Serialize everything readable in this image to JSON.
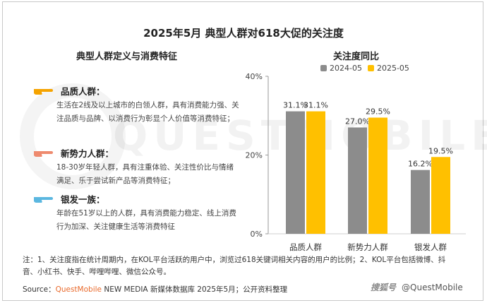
{
  "title": "2025年5月 典型人群对618大促的关注度",
  "left_section": {
    "title": "典型人群定义与消费特征",
    "groups": [
      {
        "name": "品质人群：",
        "desc": "生活在2线及以上城市的白领人群，具有消费能力强、关注品质与品牌、以消费行为彰显个人价值等消费特征；",
        "hand_color": "#f5a300"
      },
      {
        "name": "新势力人群：",
        "desc": "18-30岁年轻人群，具有注重体验、关注性价比与情绪满足、乐于尝试新产品等消费特征；",
        "hand_color": "#ee8a6e"
      },
      {
        "name": "银发一族：",
        "desc": "年龄在51岁以上的人群，具有消费能力稳定、线上消费行为加深、关注健康生活等消费特征",
        "hand_color": "#5bb7e0"
      }
    ]
  },
  "right_section": {
    "title": "关注度同比"
  },
  "chart_data": {
    "type": "bar",
    "categories": [
      "品质人群",
      "新势力人群",
      "银发人群"
    ],
    "series": [
      {
        "name": "2024-05",
        "values": [
          31.1,
          27.0,
          16.2
        ],
        "labels": [
          "31.1%",
          "27.0%",
          "16.2%"
        ],
        "color": "#8c8c8c"
      },
      {
        "name": "2025-05",
        "values": [
          31.1,
          29.5,
          19.5
        ],
        "labels": [
          "31.1%",
          "29.5%",
          "19.5%"
        ],
        "color": "#ffc000"
      }
    ],
    "ylim": [
      0,
      40
    ],
    "yticks": [
      0,
      20,
      40
    ],
    "ytick_labels": [
      "0%",
      "20%",
      "40%"
    ],
    "grid": false,
    "legend_position": "top"
  },
  "note": "注：1、关注度指在统计周期内，在KOL平台活跃的用户中，浏览过618关键词相关内容的用户的比例；2、KOL平台包括微博、抖音、小红书、快手、哔哩哔哩、微信公众号。",
  "source": {
    "prefix": "Source：",
    "brand": "QuestMobile",
    "rest": " NEW MEDIA 新媒体数据库 2025年5月；公开资料整理"
  },
  "footer": {
    "scene": "搜狐号",
    "handle": "@QuestMobile"
  },
  "watermark": "QUESTMOBILE"
}
